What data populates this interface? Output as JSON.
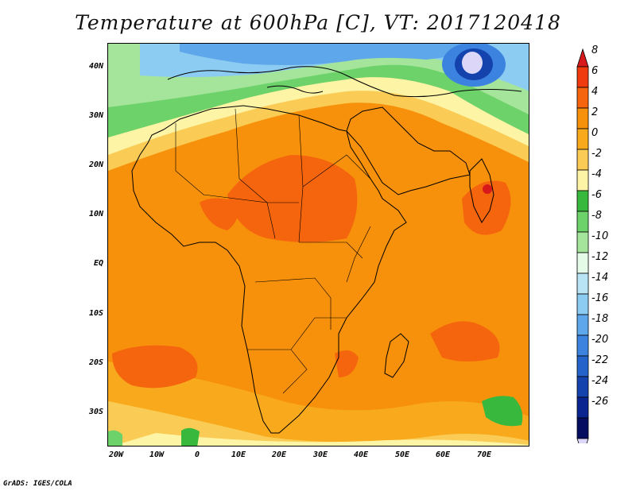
{
  "title": "Temperature at 600hPa [C], VT: 2017120418",
  "credit": "GrADS: IGES/COLA",
  "map": {
    "lat_ticks": [
      "40N",
      "30N",
      "20N",
      "10N",
      "EQ",
      "10S",
      "20S",
      "30S"
    ],
    "lon_ticks": [
      "20W",
      "10W",
      "0",
      "10E",
      "20E",
      "30E",
      "40E",
      "50E",
      "60E",
      "70E"
    ]
  },
  "colorbar": {
    "labels": [
      "8",
      "6",
      "4",
      "2",
      "0",
      "-2",
      "-4",
      "-6",
      "-8",
      "-10",
      "-12",
      "-14",
      "-16",
      "-18",
      "-20",
      "-22",
      "-24",
      "-26"
    ],
    "colors": [
      "#d7191c",
      "#f03b0e",
      "#f5650e",
      "#f7900b",
      "#f8a91c",
      "#fbcc55",
      "#fef4a6",
      "#38b93e",
      "#6ed26a",
      "#a4e59b",
      "#e4fbe8",
      "#b9e4f5",
      "#8ccbf2",
      "#5ea7ea",
      "#3b83de",
      "#2463c9",
      "#1443ae",
      "#0a2490",
      "#050d60",
      "#dcd6f8"
    ]
  }
}
